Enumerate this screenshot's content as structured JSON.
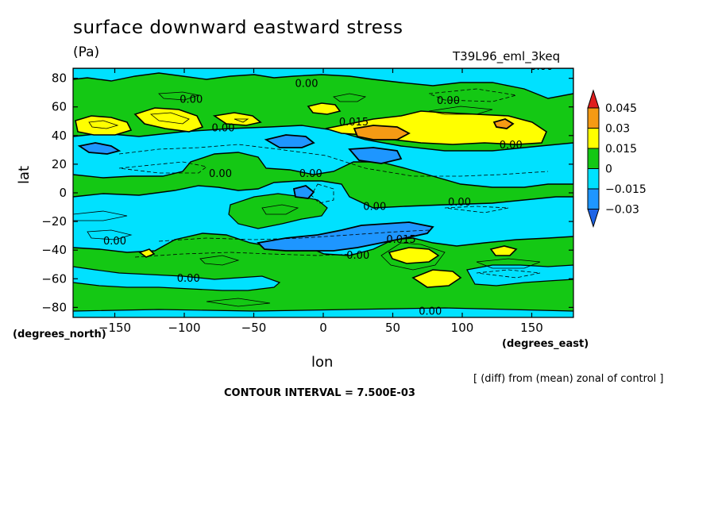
{
  "title": "surface downward eastward stress",
  "units": "(Pa)",
  "run_label": "T39L96_eml_3keq",
  "note": "[ (diff) from (mean) zonal of control ]",
  "contour_interval": "CONTOUR INTERVAL = 7.500E-03",
  "chart_data": {
    "type": "heatmap",
    "title": "surface downward eastward stress",
    "subtitle": "(Pa)",
    "xlabel": "lon",
    "ylabel": "lat",
    "x_unit": "(degrees_east)",
    "y_unit": "(degrees_north)",
    "xlim": [
      -180,
      180
    ],
    "ylim": [
      -87,
      87
    ],
    "x_ticks": [
      -150,
      -100,
      -50,
      0,
      50,
      100,
      150
    ],
    "y_ticks": [
      -80,
      -60,
      -40,
      -20,
      0,
      20,
      40,
      60,
      80
    ],
    "colorbar": {
      "levels": [
        -0.03,
        -0.015,
        0,
        0.015,
        0.03,
        0.045
      ],
      "labels": [
        "0.045",
        "0.03",
        "0.015",
        "0",
        "−0.015",
        "−0.03"
      ],
      "colors": [
        "#e01e1e",
        "#f59a14",
        "#ffff00",
        "#14c814",
        "#00e1ff",
        "#1e96ff",
        "#1e64e6"
      ]
    },
    "contour_labels": [
      {
        "text": "0.00",
        "lon": -12,
        "lat": 74
      },
      {
        "text": "0.00",
        "lon": 157,
        "lat": 86
      },
      {
        "text": "0.00",
        "lon": -95,
        "lat": 63
      },
      {
        "text": "0.00",
        "lon": 90,
        "lat": 62
      },
      {
        "text": "0.00",
        "lon": -72,
        "lat": 43
      },
      {
        "text": "0.015",
        "lon": 22,
        "lat": 47
      },
      {
        "text": "0.00",
        "lon": 135,
        "lat": 31
      },
      {
        "text": "0.00",
        "lon": -74,
        "lat": 11
      },
      {
        "text": "0.00",
        "lon": -9,
        "lat": 11
      },
      {
        "text": "0.00",
        "lon": 37,
        "lat": -12
      },
      {
        "text": "0.00",
        "lon": 98,
        "lat": -9
      },
      {
        "text": "0.015",
        "lon": 56,
        "lat": -35
      },
      {
        "text": "0.00",
        "lon": -150,
        "lat": -36
      },
      {
        "text": "0.00",
        "lon": 25,
        "lat": -46
      },
      {
        "text": "0.00",
        "lon": -97,
        "lat": -62
      },
      {
        "text": "0.00",
        "lon": 77,
        "lat": -85
      }
    ],
    "grid": false
  }
}
